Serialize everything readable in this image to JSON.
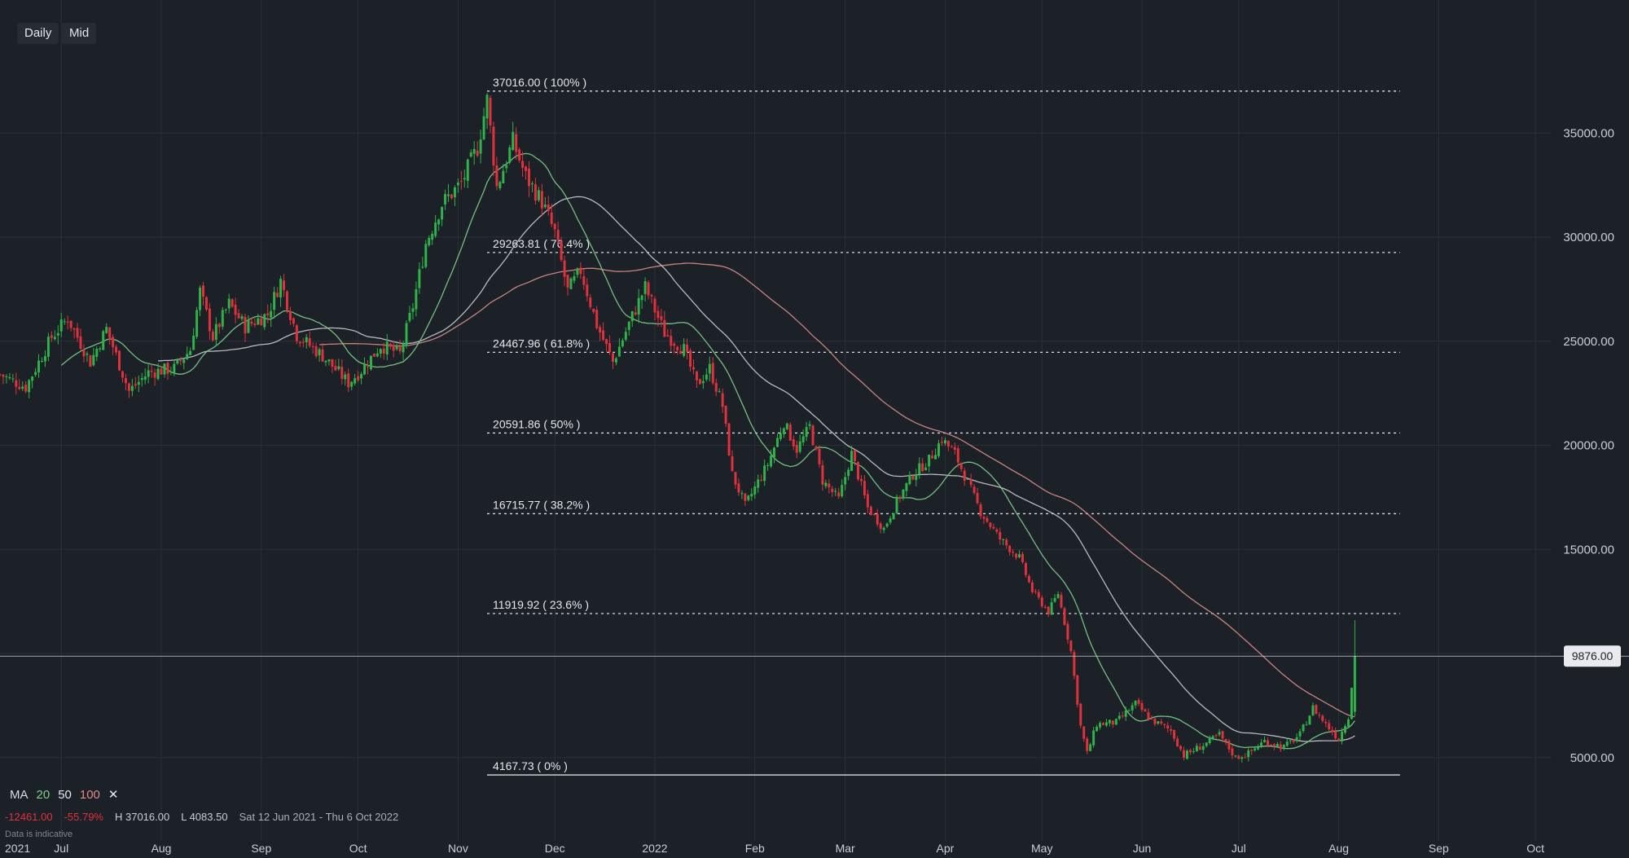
{
  "toolbar": {
    "interval_label": "Daily",
    "price_type_label": "Mid"
  },
  "indicators": {
    "ma_label": "MA",
    "ma_periods": [
      "20",
      "50",
      "100"
    ],
    "ma_colors": {
      "20": "#7fcf8c",
      "50": "#c6ccd2",
      "100": "#d98f8c"
    },
    "close_glyph": "✕"
  },
  "stats": {
    "change": "-12461.00",
    "change_pct": "-55.79%",
    "high": "H 37016.00",
    "low": "L 4083.50",
    "range": "Sat 12 Jun 2021 - Thu 6 Oct 2022"
  },
  "disclaimer": "Data is indicative",
  "colors": {
    "background": "#1c2127",
    "up": "#2fb24a",
    "down": "#e0313d",
    "grid": "#2a3038",
    "label_bg": "#e8eaed"
  },
  "chart_data": {
    "type": "candlestick",
    "x_range": [
      "2021-06-12",
      "2022-10-06"
    ],
    "ylim": [
      1000,
      41000
    ],
    "y_ticks": [
      5000,
      10000,
      15000,
      20000,
      25000,
      30000,
      35000
    ],
    "y_tick_labels": [
      "5000.00",
      "10000.00",
      "15000.00",
      "20000.00",
      "25000.00",
      "30000.00",
      "35000.00"
    ],
    "x_ticks": [
      {
        "date": "2021-07-01",
        "label": "Jul"
      },
      {
        "date": "2021-08-01",
        "label": "Aug"
      },
      {
        "date": "2021-09-01",
        "label": "Sep"
      },
      {
        "date": "2021-10-01",
        "label": "Oct"
      },
      {
        "date": "2021-11-01",
        "label": "Nov"
      },
      {
        "date": "2021-12-01",
        "label": "Dec"
      },
      {
        "date": "2022-01-01",
        "label": "2022"
      },
      {
        "date": "2022-02-01",
        "label": "Feb"
      },
      {
        "date": "2022-03-01",
        "label": "Mar"
      },
      {
        "date": "2022-04-01",
        "label": "Apr"
      },
      {
        "date": "2022-05-01",
        "label": "May"
      },
      {
        "date": "2022-06-01",
        "label": "Jun"
      },
      {
        "date": "2022-07-01",
        "label": "Jul"
      },
      {
        "date": "2022-08-01",
        "label": "Aug"
      },
      {
        "date": "2022-09-01",
        "label": "Sep"
      },
      {
        "date": "2022-10-01",
        "label": "Oct"
      }
    ],
    "x_start_label": "2021",
    "current_price": 9876,
    "current_price_label": "9876.00",
    "grid": true,
    "fibonacci": {
      "start_date": "2021-11-10",
      "end_date": "2022-08-20",
      "levels": [
        {
          "value": 37016.0,
          "label": "37016.00 ( 100% )"
        },
        {
          "value": 29263.81,
          "label": "29263.81 ( 76.4% )"
        },
        {
          "value": 24467.96,
          "label": "24467.96 ( 61.8% )"
        },
        {
          "value": 20591.86,
          "label": "20591.86 ( 50% )"
        },
        {
          "value": 16715.77,
          "label": "16715.77 ( 38.2% )"
        },
        {
          "value": 11919.92,
          "label": "11919.92 ( 23.6% )"
        },
        {
          "value": 4167.73,
          "label": "4167.73 ( 0% )"
        }
      ]
    },
    "price_path": [
      [
        "2021-06-12",
        23400
      ],
      [
        "2021-06-20",
        22800
      ],
      [
        "2021-06-28",
        25200
      ],
      [
        "2021-07-03",
        26100
      ],
      [
        "2021-07-10",
        24000
      ],
      [
        "2021-07-15",
        25600
      ],
      [
        "2021-07-22",
        22600
      ],
      [
        "2021-07-28",
        23500
      ],
      [
        "2021-08-05",
        23700
      ],
      [
        "2021-08-10",
        24600
      ],
      [
        "2021-08-13",
        27400
      ],
      [
        "2021-08-17",
        25200
      ],
      [
        "2021-08-22",
        26800
      ],
      [
        "2021-08-27",
        25700
      ],
      [
        "2021-09-03",
        26300
      ],
      [
        "2021-09-07",
        27900
      ],
      [
        "2021-09-12",
        25300
      ],
      [
        "2021-09-20",
        24300
      ],
      [
        "2021-09-28",
        23000
      ],
      [
        "2021-10-02",
        23600
      ],
      [
        "2021-10-08",
        24800
      ],
      [
        "2021-10-14",
        24400
      ],
      [
        "2021-10-18",
        26700
      ],
      [
        "2021-10-22",
        29700
      ],
      [
        "2021-10-27",
        31600
      ],
      [
        "2021-11-02",
        32600
      ],
      [
        "2021-11-07",
        34300
      ],
      [
        "2021-11-10",
        36600
      ],
      [
        "2021-11-13",
        32400
      ],
      [
        "2021-11-18",
        34600
      ],
      [
        "2021-11-22",
        32900
      ],
      [
        "2021-11-27",
        31700
      ],
      [
        "2021-12-01",
        30200
      ],
      [
        "2021-12-05",
        27400
      ],
      [
        "2021-12-09",
        28400
      ],
      [
        "2021-12-14",
        25800
      ],
      [
        "2021-12-19",
        24000
      ],
      [
        "2021-12-25",
        26200
      ],
      [
        "2021-12-29",
        27600
      ],
      [
        "2022-01-04",
        25400
      ],
      [
        "2022-01-10",
        24600
      ],
      [
        "2022-01-14",
        22900
      ],
      [
        "2022-01-18",
        23700
      ],
      [
        "2022-01-22",
        21900
      ],
      [
        "2022-01-25",
        18600
      ],
      [
        "2022-01-29",
        17100
      ],
      [
        "2022-02-05",
        19100
      ],
      [
        "2022-02-10",
        21100
      ],
      [
        "2022-02-14",
        19800
      ],
      [
        "2022-02-18",
        20900
      ],
      [
        "2022-02-22",
        18300
      ],
      [
        "2022-02-27",
        17400
      ],
      [
        "2022-03-03",
        19600
      ],
      [
        "2022-03-08",
        17000
      ],
      [
        "2022-03-13",
        16000
      ],
      [
        "2022-03-17",
        17300
      ],
      [
        "2022-03-22",
        18600
      ],
      [
        "2022-03-27",
        19300
      ],
      [
        "2022-03-31",
        20300
      ],
      [
        "2022-04-04",
        19600
      ],
      [
        "2022-04-08",
        18200
      ],
      [
        "2022-04-12",
        16800
      ],
      [
        "2022-04-18",
        15500
      ],
      [
        "2022-04-24",
        14600
      ],
      [
        "2022-04-28",
        13000
      ],
      [
        "2022-05-03",
        12000
      ],
      [
        "2022-05-06",
        12900
      ],
      [
        "2022-05-10",
        10100
      ],
      [
        "2022-05-13",
        6500
      ],
      [
        "2022-05-15",
        5200
      ],
      [
        "2022-05-18",
        6600
      ],
      [
        "2022-05-24",
        6700
      ],
      [
        "2022-05-30",
        7600
      ],
      [
        "2022-06-04",
        6800
      ],
      [
        "2022-06-10",
        6300
      ],
      [
        "2022-06-14",
        5100
      ],
      [
        "2022-06-20",
        5600
      ],
      [
        "2022-06-25",
        6100
      ],
      [
        "2022-06-30",
        5000
      ],
      [
        "2022-07-04",
        5200
      ],
      [
        "2022-07-09",
        5800
      ],
      [
        "2022-07-15",
        5500
      ],
      [
        "2022-07-20",
        6100
      ],
      [
        "2022-07-24",
        7400
      ],
      [
        "2022-07-28",
        6600
      ],
      [
        "2022-08-01",
        5900
      ],
      [
        "2022-08-04",
        7000
      ],
      [
        "2022-08-06",
        9876
      ]
    ]
  }
}
